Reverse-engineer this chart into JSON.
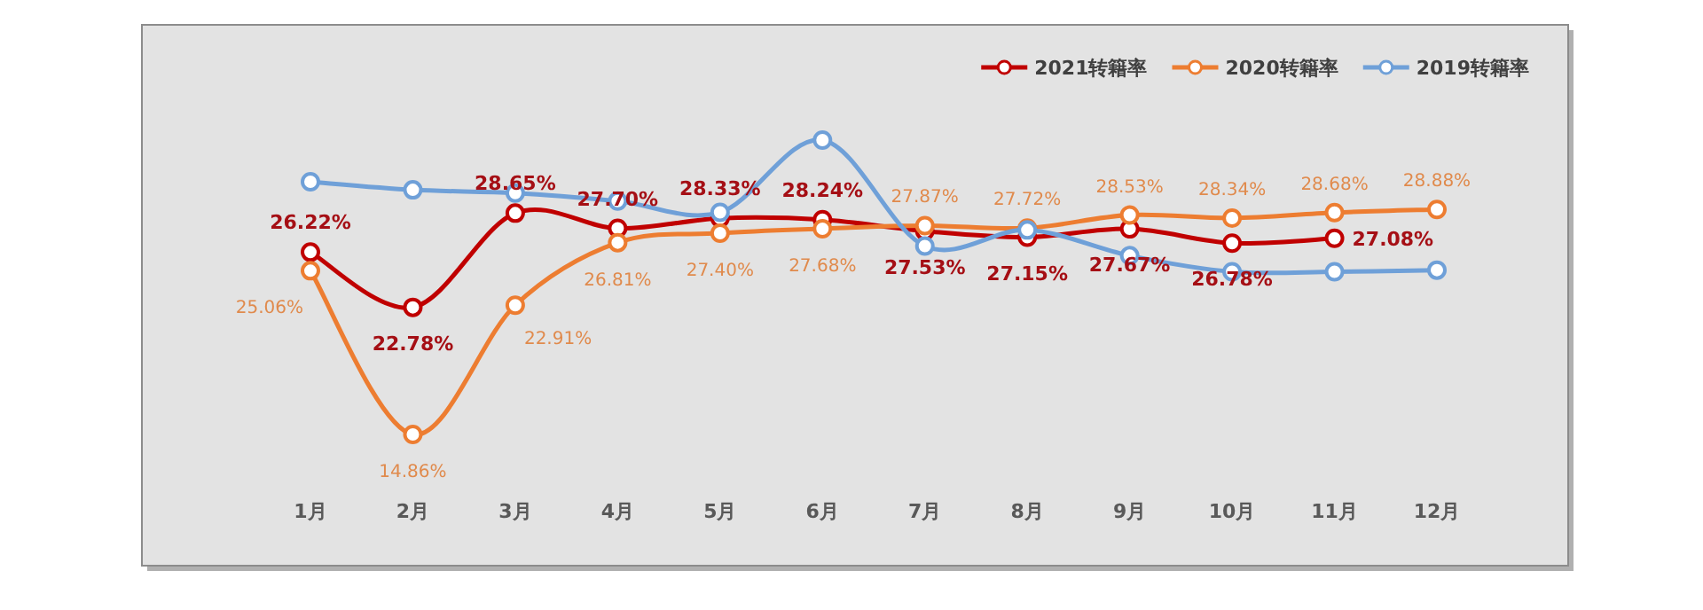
{
  "chart_data": {
    "type": "line",
    "categories": [
      "1月",
      "2月",
      "3月",
      "4月",
      "5月",
      "6月",
      "7月",
      "8月",
      "9月",
      "10月",
      "11月",
      "12月"
    ],
    "series": [
      {
        "name": "2021转籍率",
        "color": "#c00000",
        "values": [
          26.22,
          22.78,
          28.65,
          27.7,
          28.33,
          28.24,
          27.53,
          27.15,
          27.67,
          26.78,
          27.08,
          null
        ],
        "value_labels": [
          "26.22%",
          "22.78%",
          "28.65%",
          "27.70%",
          "28.33%",
          "28.24%",
          "27.53%",
          "27.15%",
          "27.67%",
          "26.78%",
          "27.08%",
          null
        ]
      },
      {
        "name": "2020转籍率",
        "color": "#ed7d31",
        "values": [
          25.06,
          14.86,
          22.91,
          26.81,
          27.4,
          27.68,
          27.87,
          27.72,
          28.53,
          28.34,
          28.68,
          28.88
        ],
        "value_labels": [
          "25.06%",
          "14.86%",
          "22.91%",
          "26.81%",
          "27.40%",
          "27.68%",
          "27.87%",
          "27.72%",
          "28.53%",
          "28.34%",
          "28.68%",
          "28.88%"
        ]
      },
      {
        "name": "2019转籍率",
        "color": "#6fa0d8",
        "values": [
          30.6,
          30.1,
          29.9,
          29.4,
          28.7,
          33.2,
          26.6,
          27.6,
          26.0,
          25.0,
          25.0,
          25.1
        ]
      }
    ],
    "legend": "top right",
    "marker": "circle",
    "line_style": "solid"
  }
}
